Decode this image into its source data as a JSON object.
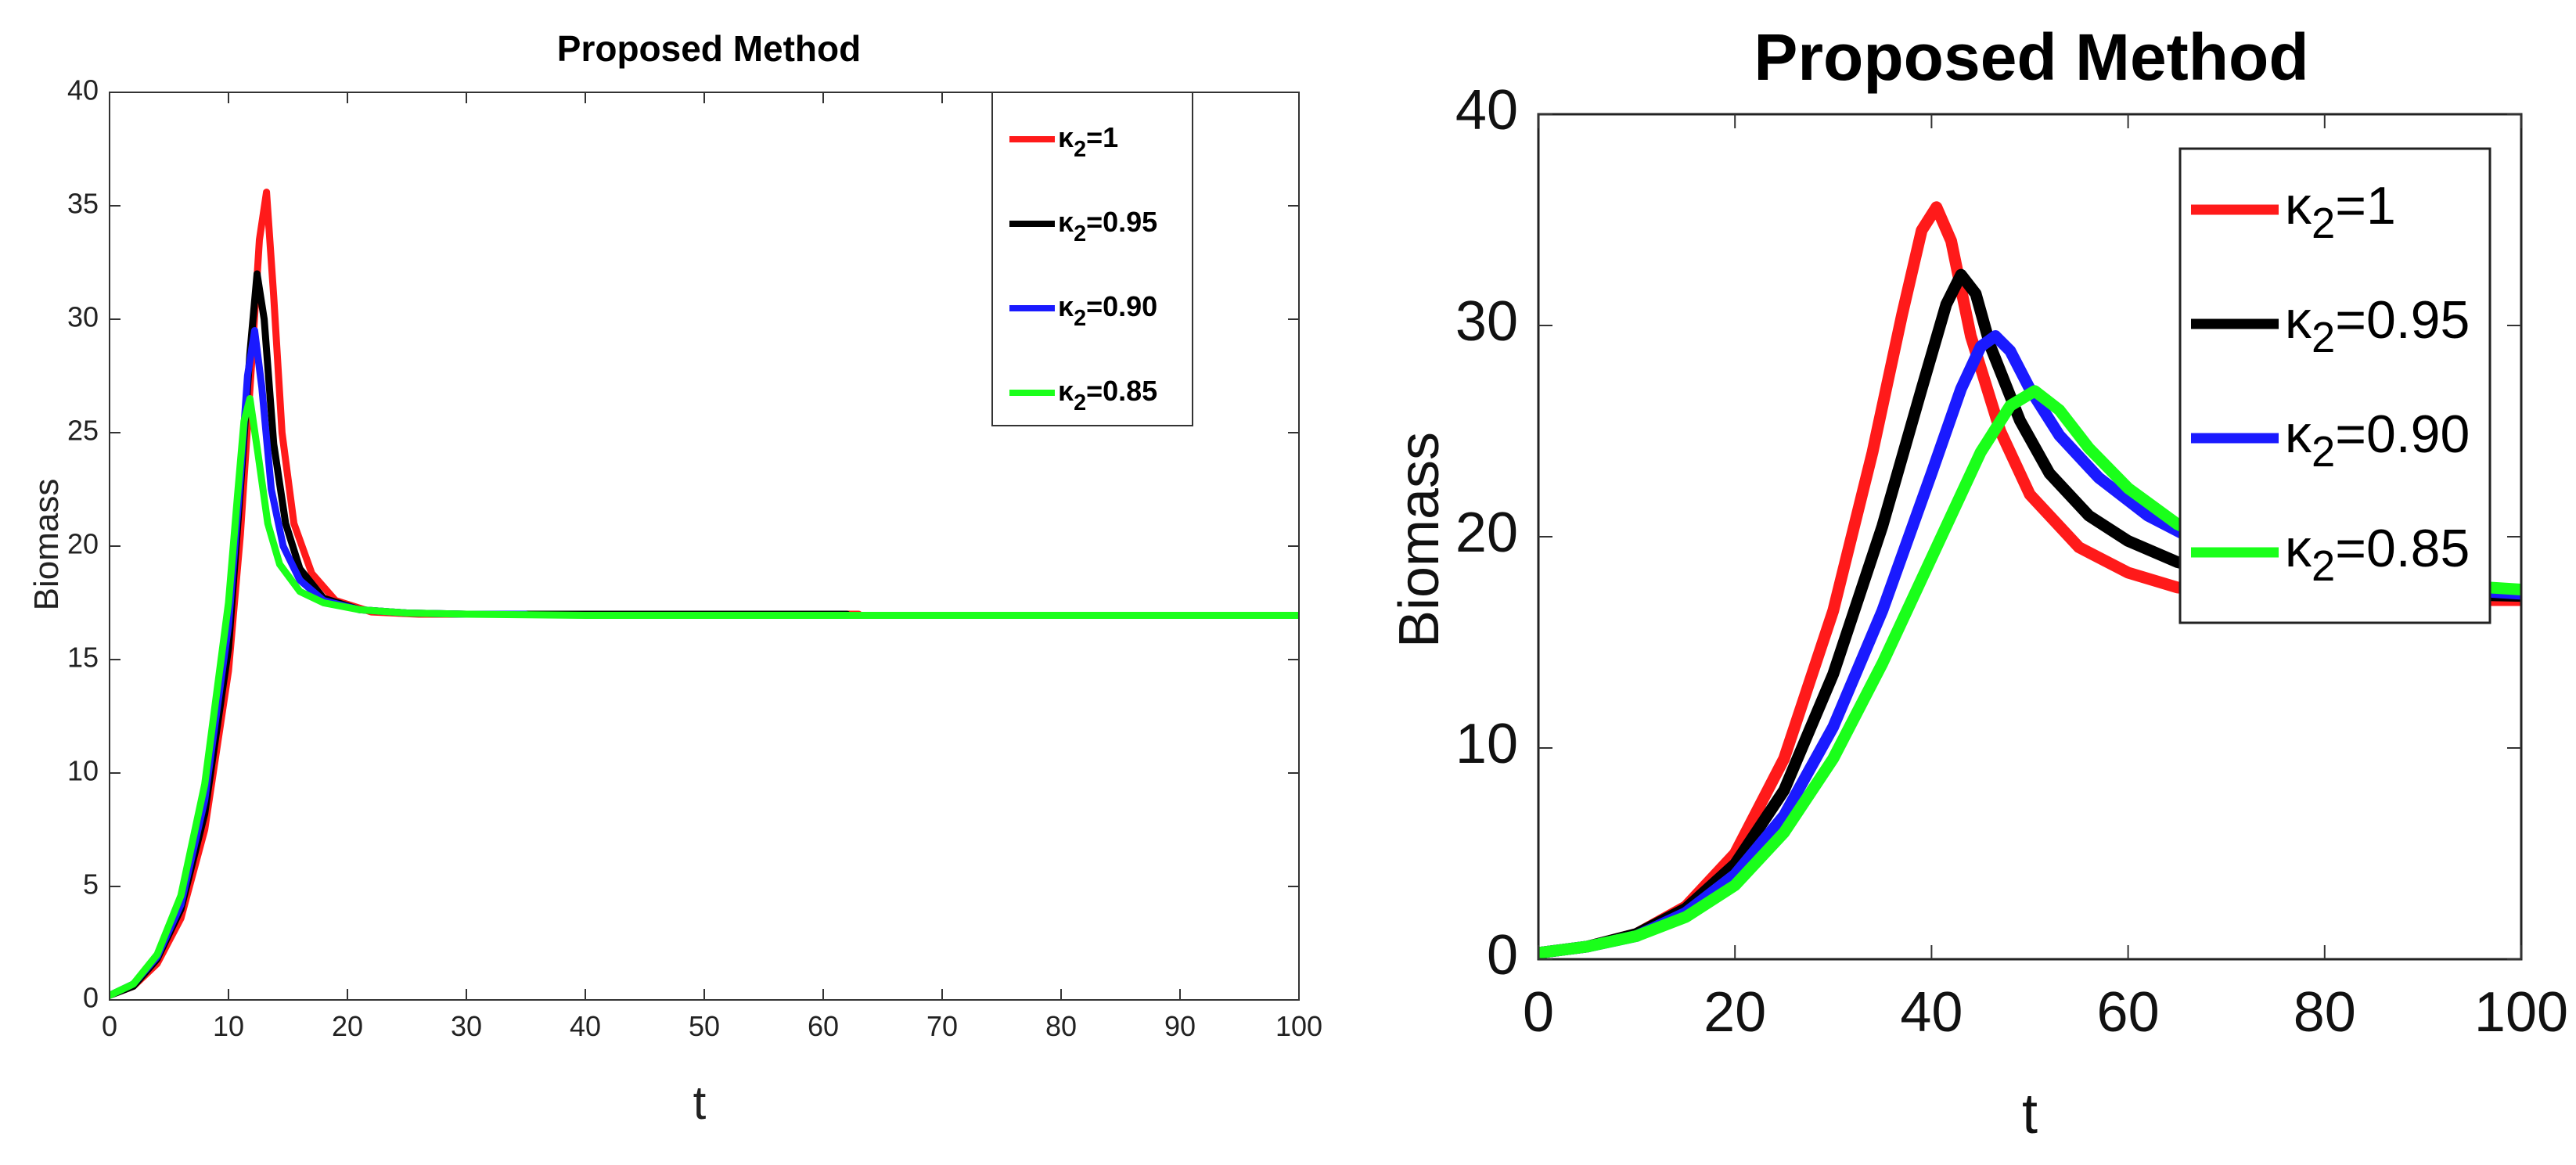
{
  "colors": {
    "red": "#ff1a1a",
    "black": "#000000",
    "blue": "#1a1aff",
    "green": "#1aff1a"
  },
  "chart_data": [
    {
      "type": "line",
      "title": "Proposed Method",
      "xlabel": "t",
      "ylabel": "Biomass",
      "xlim": [
        0,
        100
      ],
      "ylim": [
        0,
        40
      ],
      "xticks": [
        0,
        10,
        20,
        30,
        40,
        50,
        60,
        70,
        80,
        90,
        100
      ],
      "yticks": [
        0,
        5,
        10,
        15,
        20,
        25,
        30,
        35,
        40
      ],
      "grid": false,
      "legend_position": "top-right",
      "series": [
        {
          "name": "κ2=1",
          "color": "#ff1a1a",
          "x": [
            0,
            2,
            4,
            6,
            8,
            10,
            11,
            12,
            12.6,
            13.2,
            13.8,
            14.5,
            15.5,
            17,
            19,
            22,
            26,
            30,
            40,
            63
          ],
          "y": [
            0.2,
            0.6,
            1.6,
            3.6,
            7.5,
            14.5,
            20.5,
            28.5,
            33.5,
            35.6,
            31,
            25,
            21,
            18.8,
            17.6,
            17.1,
            17.0,
            17.0,
            17.0,
            17.0
          ]
        },
        {
          "name": "κ2=0.95",
          "color": "#000000",
          "x": [
            0,
            2,
            4,
            6,
            8,
            10,
            11,
            11.8,
            12.4,
            13.0,
            13.8,
            14.8,
            16,
            18,
            21,
            25,
            30,
            40,
            62
          ],
          "y": [
            0.2,
            0.6,
            1.8,
            4.0,
            8.2,
            15.5,
            22.5,
            28.5,
            32.0,
            30,
            24.5,
            21,
            19,
            17.7,
            17.2,
            17.05,
            17.0,
            17.0,
            17.0
          ]
        },
        {
          "name": "κ2=0.90",
          "color": "#1a1aff",
          "x": [
            0,
            2,
            4,
            6,
            8,
            10,
            11,
            11.6,
            12.2,
            12.8,
            13.6,
            14.6,
            16,
            18,
            21,
            25,
            30,
            35
          ],
          "y": [
            0.2,
            0.7,
            1.9,
            4.2,
            8.8,
            16.5,
            23,
            27.5,
            29.5,
            27,
            22.5,
            20,
            18.5,
            17.6,
            17.2,
            17.05,
            17.0,
            17.0
          ]
        },
        {
          "name": "κ2=0.85",
          "color": "#1a1aff",
          "x": [
            0,
            2,
            4,
            6,
            8,
            10,
            10.8,
            11.3,
            11.8,
            12.5,
            13.3,
            14.3,
            16,
            18,
            21,
            25,
            30,
            40,
            60,
            80,
            100
          ],
          "y": [
            0.2,
            0.7,
            2.0,
            4.6,
            9.5,
            17.5,
            22.5,
            25.5,
            26.5,
            24,
            21,
            19.2,
            18.0,
            17.5,
            17.2,
            17.05,
            17.0,
            16.95,
            16.95,
            16.95,
            16.95
          ]
        }
      ]
    },
    {
      "type": "line",
      "title": "Proposed Method",
      "xlabel": "t",
      "ylabel": "Biomass",
      "xlim": [
        0,
        100
      ],
      "ylim": [
        0,
        40
      ],
      "xticks": [
        0,
        20,
        40,
        60,
        80,
        100
      ],
      "yticks": [
        0,
        10,
        20,
        30,
        40
      ],
      "grid": false,
      "legend_position": "top-right",
      "series": [
        {
          "name": "κ2=1",
          "color": "#ff1a1a",
          "x": [
            0,
            5,
            10,
            15,
            20,
            25,
            30,
            34,
            37,
            39,
            40.5,
            42,
            44,
            47,
            50,
            55,
            60,
            65,
            70,
            80,
            90,
            100
          ],
          "y": [
            0.3,
            0.6,
            1.2,
            2.5,
            5.0,
            9.5,
            16.5,
            24.0,
            30.5,
            34.5,
            35.6,
            34.0,
            29.5,
            25.0,
            22.0,
            19.5,
            18.3,
            17.6,
            17.3,
            17.1,
            17.0,
            17.0
          ]
        },
        {
          "name": "κ2=0.95",
          "color": "#000000",
          "x": [
            0,
            5,
            10,
            15,
            20,
            25,
            30,
            35,
            39,
            41.5,
            43,
            44.5,
            46,
            49,
            52,
            56,
            60,
            65,
            70,
            80,
            90,
            100
          ],
          "y": [
            0.3,
            0.6,
            1.2,
            2.4,
            4.5,
            8.0,
            13.5,
            20.5,
            27.0,
            31.0,
            32.4,
            31.5,
            29.0,
            25.5,
            23.0,
            21.0,
            19.8,
            18.8,
            18.2,
            17.6,
            17.3,
            17.2
          ]
        },
        {
          "name": "κ2=0.90",
          "color": "#1a1aff",
          "x": [
            0,
            5,
            10,
            15,
            20,
            25,
            30,
            35,
            40,
            43,
            45,
            46.5,
            48,
            50,
            53,
            57,
            62,
            67,
            72,
            80,
            90,
            100
          ],
          "y": [
            0.3,
            0.6,
            1.1,
            2.2,
            4.0,
            6.8,
            11.0,
            16.5,
            23.0,
            27.0,
            29.0,
            29.5,
            28.8,
            27.0,
            24.8,
            22.8,
            21.0,
            19.8,
            19.0,
            18.2,
            17.6,
            17.3
          ]
        },
        {
          "name": "κ2=0.85",
          "color": "#1aff1a",
          "x": [
            0,
            5,
            10,
            15,
            20,
            25,
            30,
            35,
            40,
            45,
            48,
            50.5,
            53,
            56,
            60,
            65,
            70,
            75,
            80,
            90,
            100
          ],
          "y": [
            0.3,
            0.6,
            1.1,
            2.0,
            3.5,
            6.0,
            9.5,
            14.0,
            19.0,
            24.0,
            26.2,
            26.9,
            26.0,
            24.2,
            22.3,
            20.6,
            19.5,
            18.8,
            18.3,
            17.8,
            17.5
          ]
        }
      ]
    }
  ]
}
